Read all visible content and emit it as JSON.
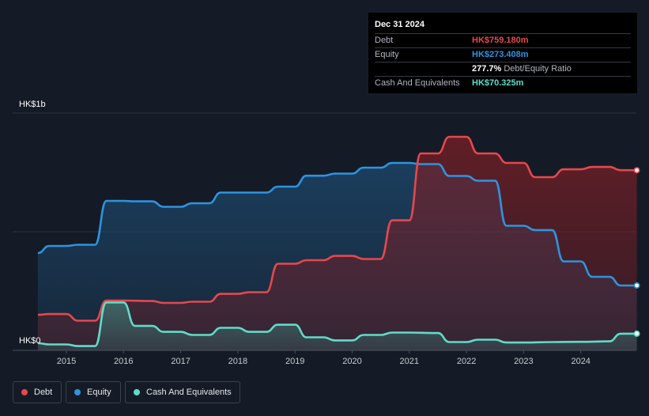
{
  "tooltip": {
    "date": "Dec 31 2024",
    "rows": [
      {
        "label": "Debt",
        "value": "HK$759.180m",
        "color": "#e5484d"
      },
      {
        "label": "Equity",
        "value": "HK$273.408m",
        "color": "#2d94e0"
      },
      {
        "label": "",
        "value": "277.7%",
        "unit": "Debt/Equity Ratio",
        "color": "#ffffff"
      },
      {
        "label": "Cash And Equivalents",
        "value": "HK$70.325m",
        "color": "#5fdcc8"
      }
    ]
  },
  "legend": [
    {
      "label": "Debt",
      "color": "#e5484d"
    },
    {
      "label": "Equity",
      "color": "#2d94e0"
    },
    {
      "label": "Cash And Equivalents",
      "color": "#5fdcc8"
    }
  ],
  "chart_data": {
    "type": "area",
    "y_top_label": "HK$1b",
    "y_bottom_label": "HK$0",
    "ylim": [
      0,
      1000
    ],
    "xlim": [
      2014.5,
      2025.0
    ],
    "x_ticks": [
      "2015",
      "2016",
      "2017",
      "2018",
      "2019",
      "2020",
      "2021",
      "2022",
      "2023",
      "2024"
    ],
    "grid": true,
    "series": [
      {
        "name": "Debt",
        "color": "#e5484d",
        "points": [
          [
            2014.5,
            150
          ],
          [
            2014.7,
            153
          ],
          [
            2014.9,
            153
          ],
          [
            2015.0,
            153
          ],
          [
            2015.2,
            125
          ],
          [
            2015.5,
            125
          ],
          [
            2015.7,
            210
          ],
          [
            2016.0,
            210
          ],
          [
            2016.5,
            208
          ],
          [
            2016.7,
            200
          ],
          [
            2017.0,
            200
          ],
          [
            2017.2,
            205
          ],
          [
            2017.5,
            205
          ],
          [
            2017.7,
            238
          ],
          [
            2018.0,
            238
          ],
          [
            2018.2,
            245
          ],
          [
            2018.5,
            245
          ],
          [
            2018.7,
            365
          ],
          [
            2019.0,
            365
          ],
          [
            2019.2,
            380
          ],
          [
            2019.5,
            380
          ],
          [
            2019.7,
            398
          ],
          [
            2020.0,
            398
          ],
          [
            2020.2,
            385
          ],
          [
            2020.5,
            385
          ],
          [
            2020.7,
            548
          ],
          [
            2021.0,
            548
          ],
          [
            2021.2,
            830
          ],
          [
            2021.5,
            830
          ],
          [
            2021.7,
            900
          ],
          [
            2022.0,
            900
          ],
          [
            2022.2,
            830
          ],
          [
            2022.5,
            830
          ],
          [
            2022.7,
            790
          ],
          [
            2023.0,
            790
          ],
          [
            2023.2,
            730
          ],
          [
            2023.5,
            730
          ],
          [
            2023.7,
            763
          ],
          [
            2024.0,
            763
          ],
          [
            2024.2,
            773
          ],
          [
            2024.5,
            773
          ],
          [
            2024.7,
            759.18
          ],
          [
            2024.98,
            759.18
          ]
        ]
      },
      {
        "name": "Equity",
        "color": "#2d94e0",
        "points": [
          [
            2014.5,
            410
          ],
          [
            2014.7,
            440
          ],
          [
            2014.9,
            440
          ],
          [
            2015.0,
            440
          ],
          [
            2015.2,
            445
          ],
          [
            2015.5,
            445
          ],
          [
            2015.7,
            630
          ],
          [
            2016.0,
            630
          ],
          [
            2016.2,
            628
          ],
          [
            2016.5,
            628
          ],
          [
            2016.7,
            605
          ],
          [
            2017.0,
            605
          ],
          [
            2017.2,
            620
          ],
          [
            2017.5,
            620
          ],
          [
            2017.7,
            665
          ],
          [
            2018.0,
            665
          ],
          [
            2018.5,
            665
          ],
          [
            2018.7,
            690
          ],
          [
            2019.0,
            690
          ],
          [
            2019.2,
            736
          ],
          [
            2019.5,
            736
          ],
          [
            2019.7,
            745
          ],
          [
            2020.0,
            745
          ],
          [
            2020.2,
            770
          ],
          [
            2020.5,
            770
          ],
          [
            2020.7,
            790
          ],
          [
            2021.0,
            790
          ],
          [
            2021.2,
            785
          ],
          [
            2021.5,
            785
          ],
          [
            2021.7,
            735
          ],
          [
            2022.0,
            735
          ],
          [
            2022.2,
            715
          ],
          [
            2022.5,
            715
          ],
          [
            2022.7,
            525
          ],
          [
            2023.0,
            525
          ],
          [
            2023.2,
            507
          ],
          [
            2023.5,
            507
          ],
          [
            2023.7,
            375
          ],
          [
            2024.0,
            375
          ],
          [
            2024.2,
            310
          ],
          [
            2024.5,
            310
          ],
          [
            2024.7,
            273.41
          ],
          [
            2024.98,
            273.41
          ]
        ]
      },
      {
        "name": "Cash And Equivalents",
        "color": "#5fdcc8",
        "points": [
          [
            2014.5,
            30
          ],
          [
            2014.7,
            25
          ],
          [
            2014.9,
            25
          ],
          [
            2015.0,
            25
          ],
          [
            2015.2,
            18
          ],
          [
            2015.5,
            18
          ],
          [
            2015.7,
            202
          ],
          [
            2016.0,
            202
          ],
          [
            2016.2,
            103
          ],
          [
            2016.5,
            103
          ],
          [
            2016.7,
            78
          ],
          [
            2017.0,
            78
          ],
          [
            2017.2,
            65
          ],
          [
            2017.5,
            65
          ],
          [
            2017.7,
            95
          ],
          [
            2018.0,
            95
          ],
          [
            2018.2,
            78
          ],
          [
            2018.5,
            78
          ],
          [
            2018.7,
            108
          ],
          [
            2019.0,
            108
          ],
          [
            2019.2,
            55
          ],
          [
            2019.5,
            55
          ],
          [
            2019.7,
            42
          ],
          [
            2020.0,
            42
          ],
          [
            2020.2,
            65
          ],
          [
            2020.5,
            65
          ],
          [
            2020.7,
            75
          ],
          [
            2021.0,
            75
          ],
          [
            2021.5,
            73
          ],
          [
            2021.7,
            35
          ],
          [
            2022.0,
            35
          ],
          [
            2022.2,
            45
          ],
          [
            2022.5,
            45
          ],
          [
            2022.7,
            33
          ],
          [
            2023.0,
            33
          ],
          [
            2023.5,
            35
          ],
          [
            2024.0,
            36
          ],
          [
            2024.5,
            38
          ],
          [
            2024.7,
            70.33
          ],
          [
            2024.98,
            70.33
          ]
        ]
      }
    ]
  }
}
